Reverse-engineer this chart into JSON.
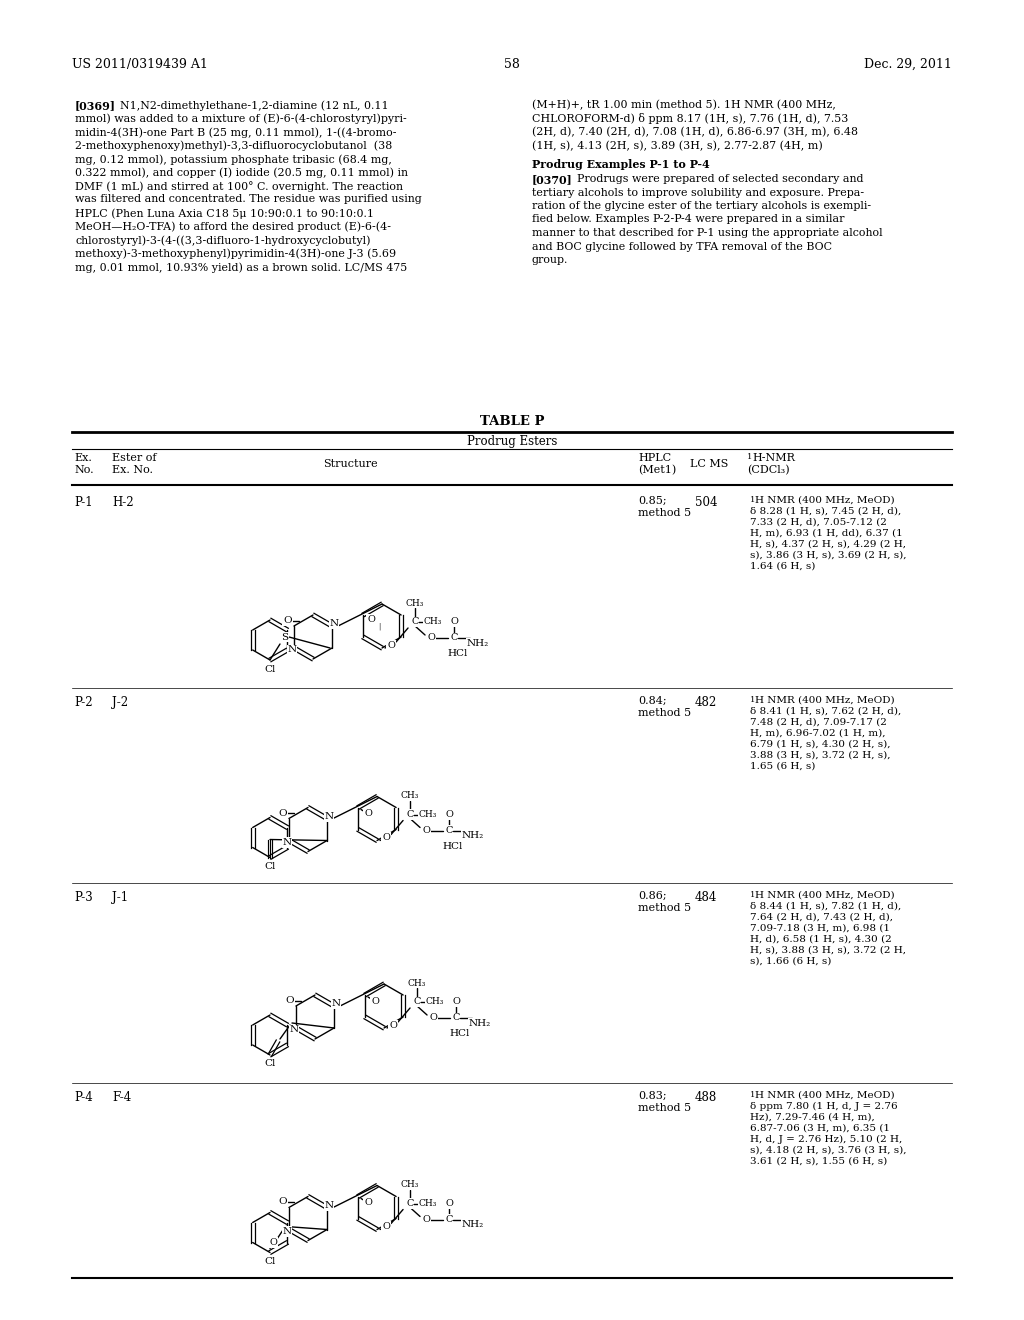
{
  "page_header_left": "US 2011/0319439 A1",
  "page_header_right": "Dec. 29, 2011",
  "page_number": "58",
  "background_color": "#ffffff",
  "text_color": "#000000",
  "paragraph_369_left": "[0369]  N1,N2-dimethylethane-1,2-diamine (12 nL, 0.11\nmmol) was added to a mixture of (E)-6-(4-chlorostyryl)pyri-\nmidin-4(3H)-one Part B (25 mg, 0.11 mmol), 1-((4-bromo-\n2-methoxyphenoxy)methyl)-3,3-difluorocyclobutanol  (38\nmg, 0.12 mmol), potassium phosphate tribasic (68.4 mg,\n0.322 mmol), and copper (I) iodide (20.5 mg, 0.11 mmol) in\nDMF (1 mL) and stirred at 100° C. overnight. The reaction\nwas filtered and concentrated. The residue was purified using\nHPLC (Phen Luna Axia C18 5μ 10:90:0.1 to 90:10:0.1\nMeOH—H₂O-TFA) to afford the desired product (E)-6-(4-\nchlorostyryl)-3-(4-((3,3-difluoro-1-hydroxycyclobutyl)\nmethoxy)-3-methoxyphenyl)pyrimidin-4(3H)-one J-3 (5.69\nmg, 0.01 mmol, 10.93% yield) as a brown solid. LC/MS 475",
  "paragraph_369_right": "(M+H)+, tR 1.00 min (method 5). 1H NMR (400 MHz,\nCHLOROFORM-d) δ ppm 8.17 (1H, s), 7.76 (1H, d), 7.53\n(2H, d), 7.40 (2H, d), 7.08 (1H, d), 6.86-6.97 (3H, m), 6.48\n(1H, s), 4.13 (2H, s), 3.89 (3H, s), 2.77-2.87 (4H, m)",
  "prodrug_header": "Prodrug Examples P-1 to P-4",
  "paragraph_370_right": "[0370]  Prodrugs were prepared of selected secondary and\ntertiary alcohols to improve solubility and exposure. Prepa-\nration of the glycine ester of the tertiary alcohols is exempli-\nfied below. Examples P-2-P-4 were prepared in a similar\nmanner to that described for P-1 using the appropriate alcohol\nand BOC glycine followed by TFA removal of the BOC\ngroup.",
  "table_title": "TABLE P",
  "table_subtitle": "Prodrug Esters",
  "rows": [
    {
      "ex_no": "P-1",
      "ester_of": "H-2",
      "hplc": "0.85;\nmethod 5",
      "lc_ms": "504",
      "nmr": "1H NMR (400 MHz, MeOD)\nδ 8.28 (1 H, s), 7.45 (2 H, d),\n7.33 (2 H, d), 7.05-7.12 (2\nH, m), 6.93 (1 H, dd), 6.37 (1\nH, s), 4.37 (2 H, s), 4.29 (2 H,\ns), 3.86 (3 H, s), 3.69 (2 H, s),\n1.64 (6 H, s)"
    },
    {
      "ex_no": "P-2",
      "ester_of": "J-2",
      "hplc": "0.84;\nmethod 5",
      "lc_ms": "482",
      "nmr": "1H NMR (400 MHz, MeOD)\nδ 8.41 (1 H, s), 7.62 (2 H, d),\n7.48 (2 H, d), 7.09-7.17 (2\nH, m), 6.96-7.02 (1 H, m),\n6.79 (1 H, s), 4.30 (2 H, s),\n3.88 (3 H, s), 3.72 (2 H, s),\n1.65 (6 H, s)"
    },
    {
      "ex_no": "P-3",
      "ester_of": "J-1",
      "hplc": "0.86;\nmethod 5",
      "lc_ms": "484",
      "nmr": "1H NMR (400 MHz, MeOD)\nδ 8.44 (1 H, s), 7.82 (1 H, d),\n7.64 (2 H, d), 7.43 (2 H, d),\n7.09-7.18 (3 H, m), 6.98 (1\nH, d), 6.58 (1 H, s), 4.30 (2\nH, s), 3.88 (3 H, s), 3.72 (2 H,\ns), 1.66 (6 H, s)"
    },
    {
      "ex_no": "P-4",
      "ester_of": "F-4",
      "hplc": "0.83;\nmethod 5",
      "lc_ms": "488",
      "nmr": "1H NMR (400 MHz, MeOD)\nδ ppm 7.80 (1 H, d, J = 2.76\nHz), 7.29-7.46 (4 H, m),\n6.87-7.06 (3 H, m), 6.35 (1\nH, d, J = 2.76 Hz), 5.10 (2 H,\ns), 4.18 (2 H, s), 3.76 (3 H, s),\n3.61 (2 H, s), 1.55 (6 H, s)"
    }
  ]
}
